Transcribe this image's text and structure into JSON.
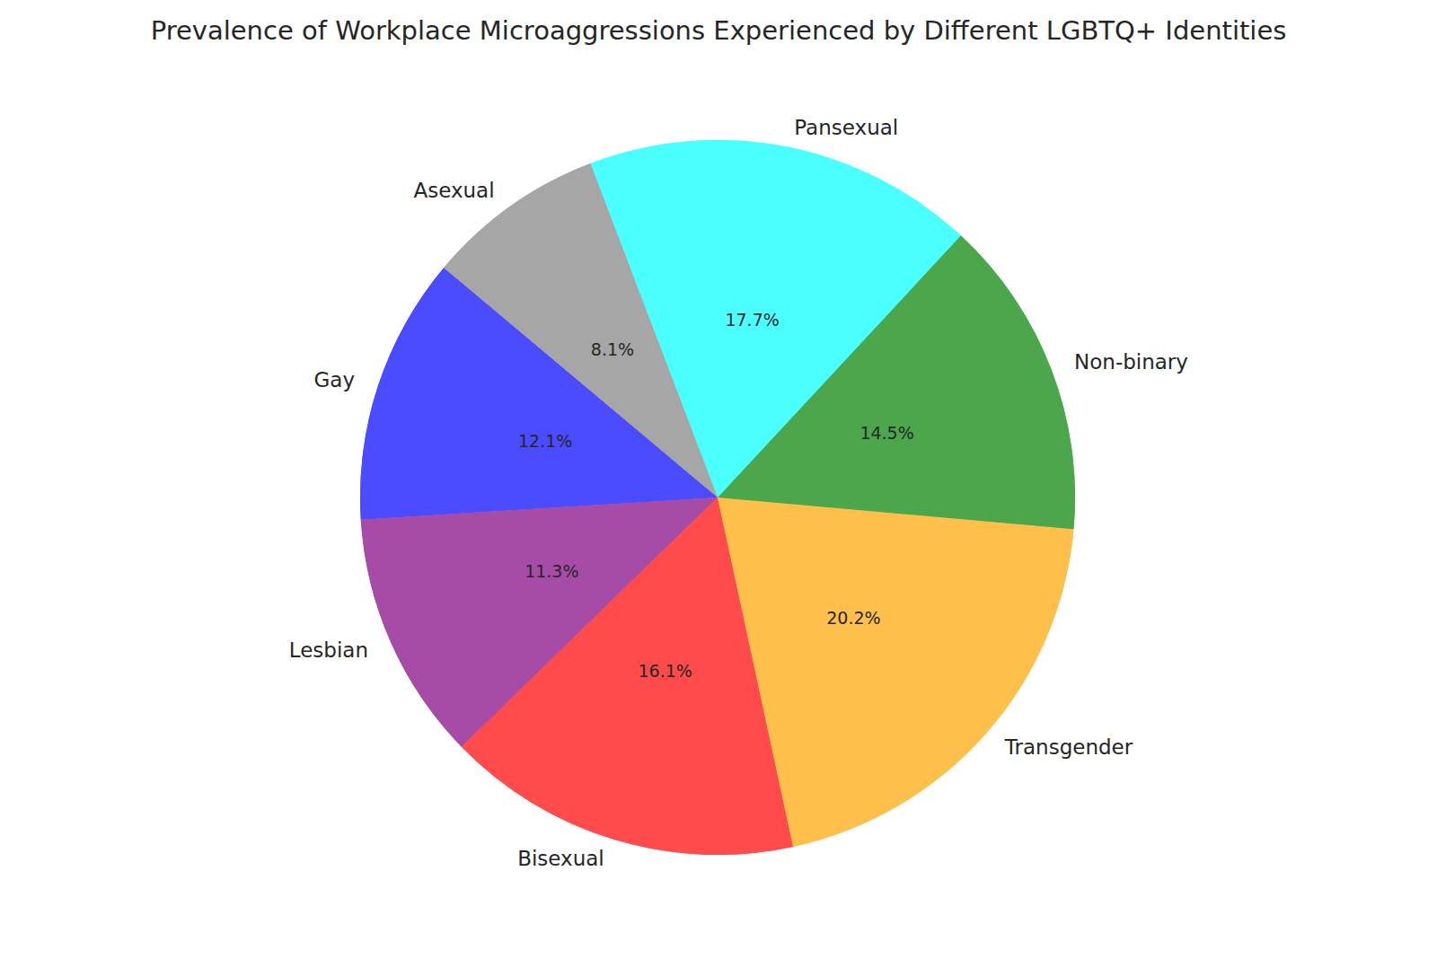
{
  "chart_data": {
    "type": "pie",
    "title": "Prevalence of Workplace Microaggressions Experienced by Different LGBTQ+ Identities",
    "categories": [
      "Gay",
      "Lesbian",
      "Bisexual",
      "Transgender",
      "Non-binary",
      "Pansexual",
      "Asexual"
    ],
    "values": [
      12.1,
      11.3,
      16.1,
      20.2,
      14.5,
      17.7,
      8.1
    ],
    "value_labels": [
      "12.1%",
      "11.3%",
      "16.1%",
      "20.2%",
      "14.5%",
      "17.7%",
      "8.1%"
    ],
    "colors": [
      "#4b4bff",
      "#a64ca6",
      "#ff4b4b",
      "#ffbf4b",
      "#4ca64c",
      "#4bffff",
      "#a6a6a6"
    ],
    "data_labels": true
  }
}
